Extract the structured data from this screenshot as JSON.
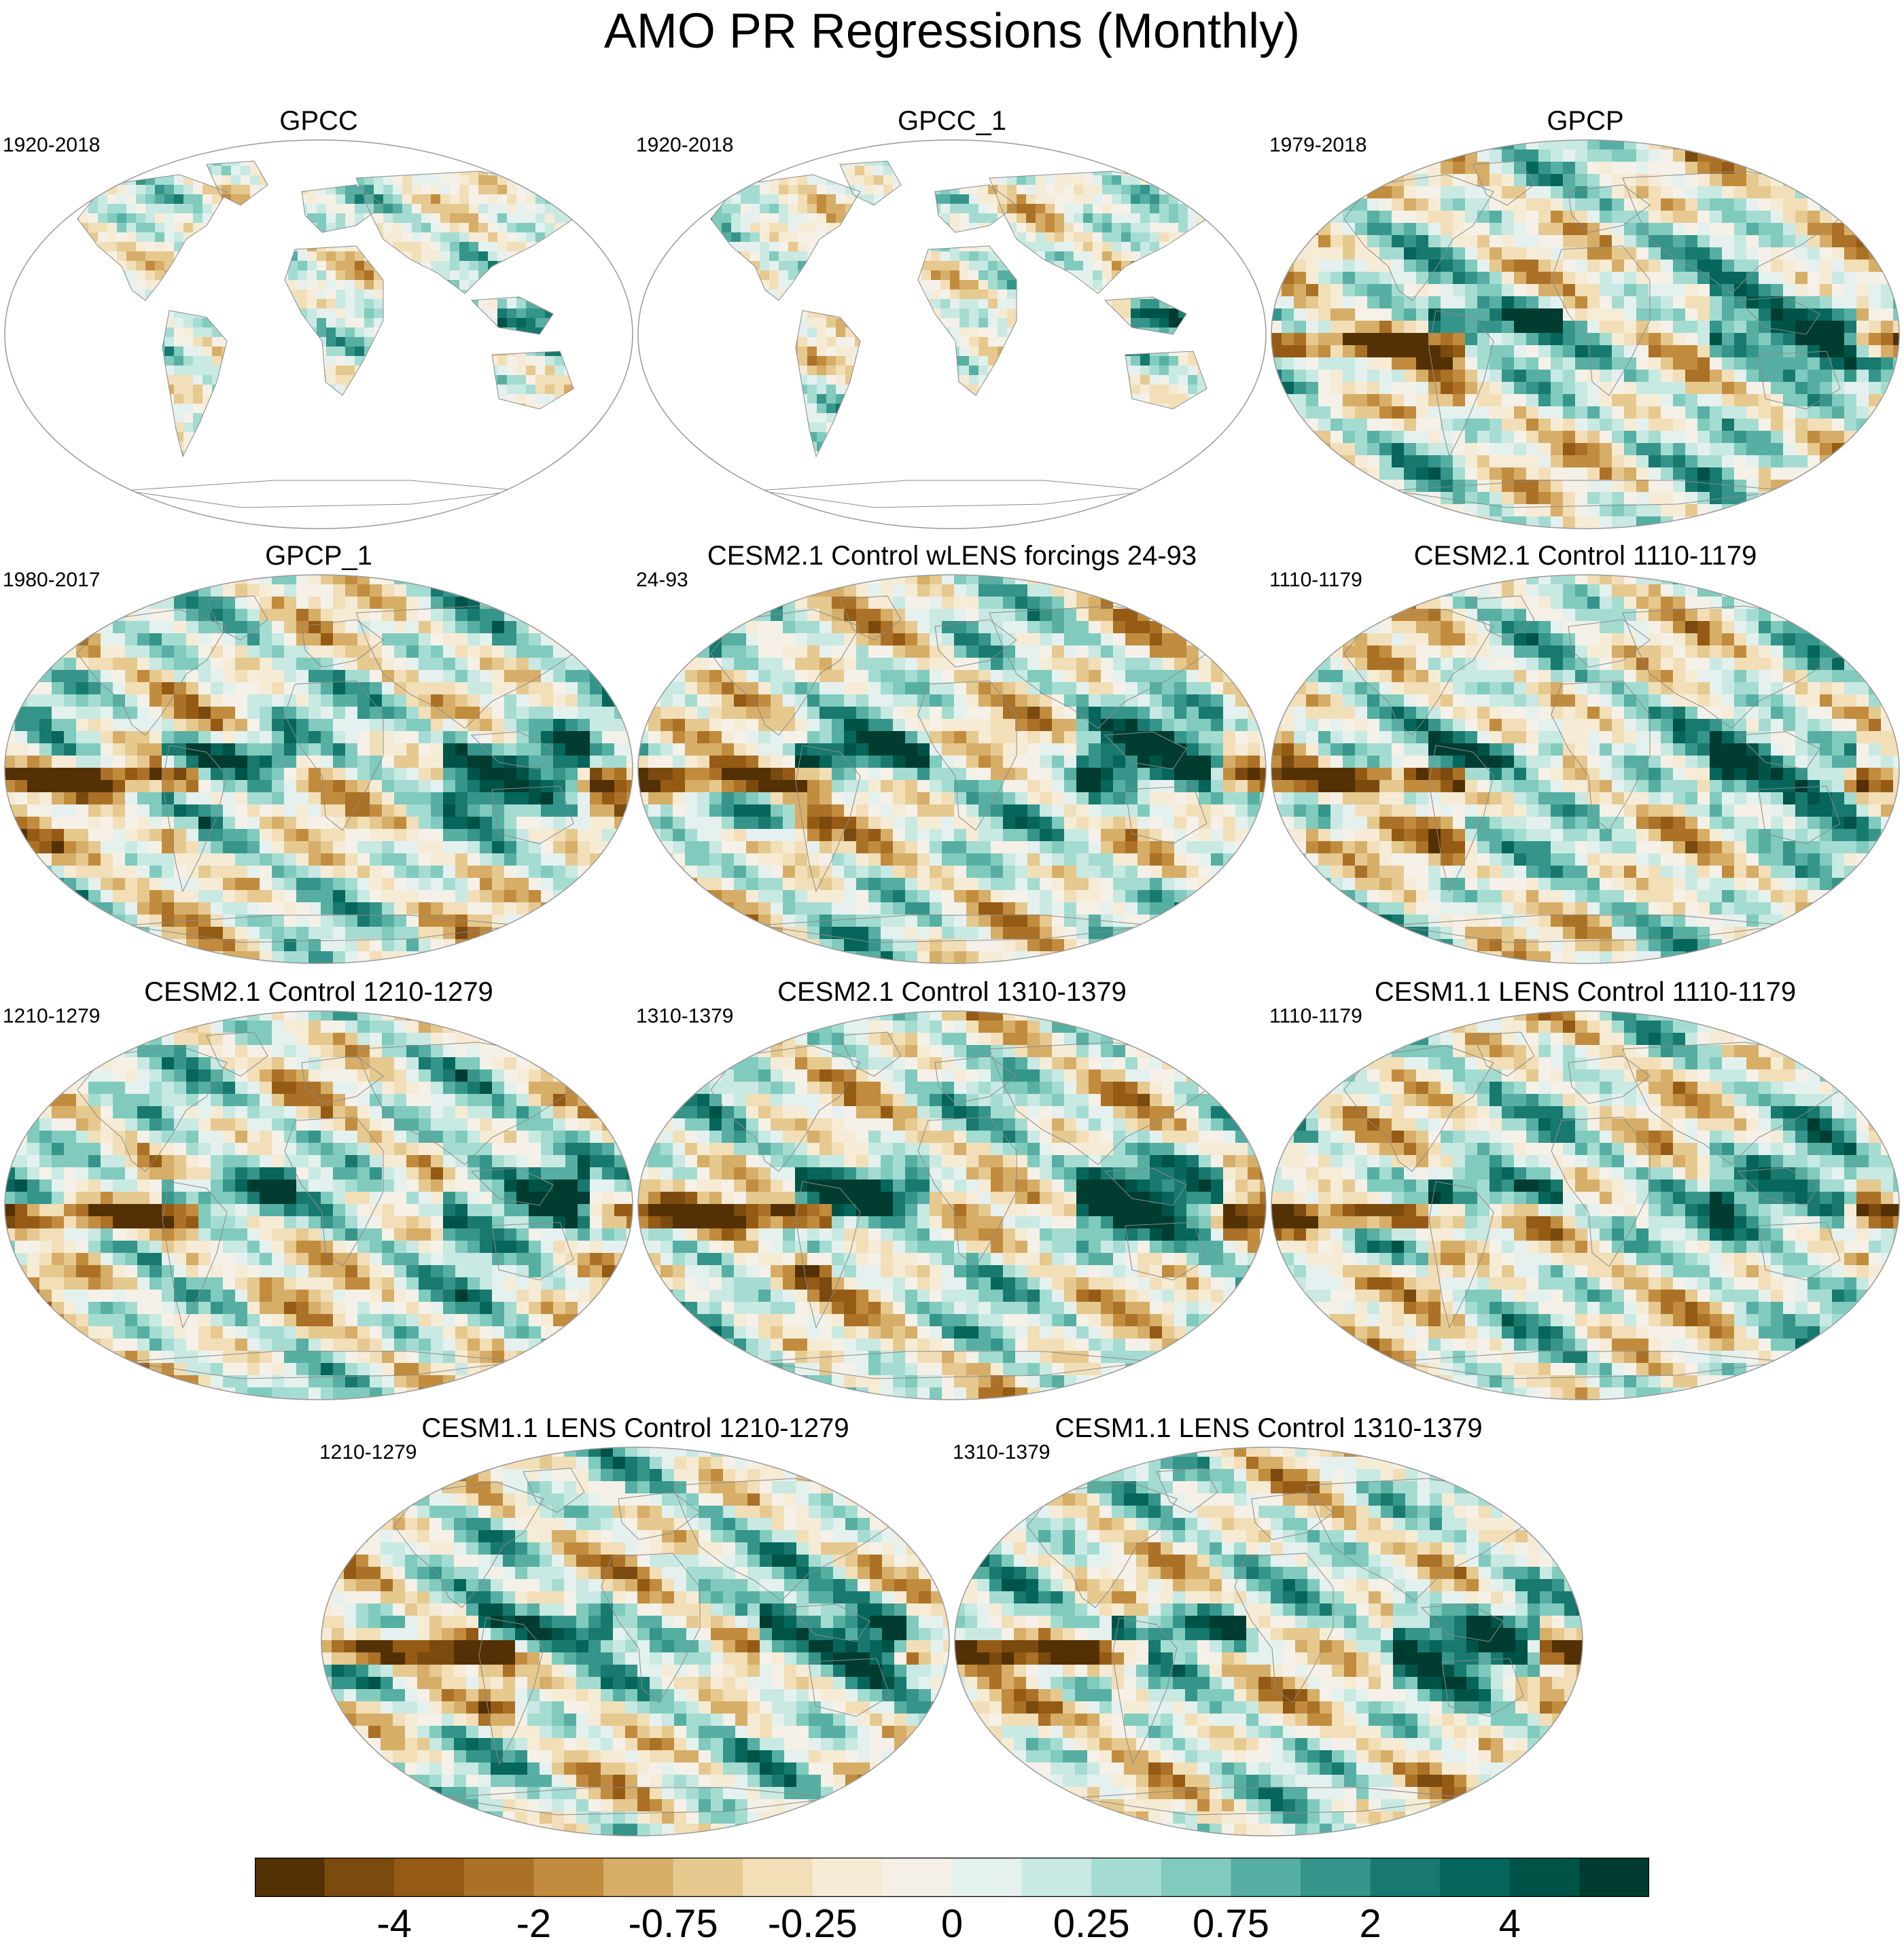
{
  "title": "AMO PR Regressions (Monthly)",
  "panels": [
    {
      "title": "GPCC",
      "period": "1920-2018",
      "coverage": "land-only",
      "variant": 1
    },
    {
      "title": "GPCC_1",
      "period": "1920-2018",
      "coverage": "land-only",
      "variant": 2
    },
    {
      "title": "GPCP",
      "period": "1979-2018",
      "coverage": "global",
      "variant": 3
    },
    {
      "title": "GPCP_1",
      "period": "1980-2017",
      "coverage": "global",
      "variant": 4
    },
    {
      "title": "CESM2.1 Control wLENS forcings 24-93",
      "period": "24-93",
      "coverage": "global",
      "variant": 5
    },
    {
      "title": "CESM2.1 Control 1110-1179",
      "period": "1110-1179",
      "coverage": "global",
      "variant": 6
    },
    {
      "title": "CESM2.1 Control 1210-1279",
      "period": "1210-1279",
      "coverage": "global",
      "variant": 7
    },
    {
      "title": "CESM2.1 Control 1310-1379",
      "period": "1310-1379",
      "coverage": "global",
      "variant": 8
    },
    {
      "title": "CESM1.1 LENS Control 1110-1179",
      "period": "1110-1179",
      "coverage": "global",
      "variant": 9
    },
    {
      "title": "CESM1.1 LENS Control 1210-1279",
      "period": "1210-1279",
      "coverage": "global",
      "variant": 10
    },
    {
      "title": "CESM1.1 LENS Control 1310-1379",
      "period": "1310-1379",
      "coverage": "global",
      "variant": 11
    }
  ],
  "colorbar": {
    "colors": [
      "#543005",
      "#7a4a0f",
      "#955b14",
      "#ab7127",
      "#c28c3e",
      "#d6ae68",
      "#e6c98f",
      "#f2dfb8",
      "#f6ecd6",
      "#f5f1e8",
      "#e5f1ef",
      "#c9e9e3",
      "#a5dcd2",
      "#80cbbd",
      "#56afa2",
      "#35958a",
      "#18796f",
      "#06665b",
      "#005347",
      "#003c30"
    ],
    "labels": [
      "-4",
      "-2",
      "-0.75",
      "-0.25",
      "0",
      "0.25",
      "0.75",
      "2",
      "4"
    ],
    "label_bins": [
      2,
      4,
      6,
      8,
      10,
      12,
      14,
      16,
      18
    ]
  }
}
